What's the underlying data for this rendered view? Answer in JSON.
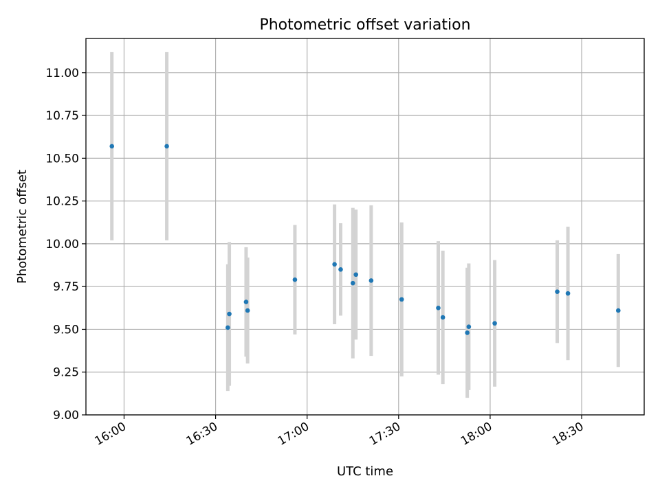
{
  "chart_data": {
    "type": "scatter",
    "title": "Photometric offset variation",
    "xlabel": "UTC time",
    "ylabel": "Photometric offset",
    "x_tick_labels": [
      "16:00",
      "16:30",
      "17:00",
      "17:30",
      "18:00",
      "18:30"
    ],
    "x_tick_minutes": [
      960,
      990,
      1020,
      1050,
      1080,
      1110
    ],
    "x_range_minutes": [
      947.5,
      1130.5
    ],
    "ylim": [
      9.0,
      11.2
    ],
    "y_ticks": [
      9.0,
      9.25,
      9.5,
      9.75,
      10.0,
      10.25,
      10.5,
      10.75,
      11.0
    ],
    "y_tick_labels": [
      "9.00",
      "9.25",
      "9.50",
      "9.75",
      "10.00",
      "10.25",
      "10.50",
      "10.75",
      "11.00"
    ],
    "grid": true,
    "colors": {
      "marker": "#1f77b4",
      "errorbar": "#d3d3d3",
      "grid": "#b0b0b0"
    },
    "points": [
      {
        "time": "15:56",
        "y": 10.57,
        "err": 0.55
      },
      {
        "time": "16:14",
        "y": 10.57,
        "err": 0.55
      },
      {
        "time": "16:34",
        "y": 9.51,
        "err": 0.37
      },
      {
        "time": "16:34.5",
        "y": 9.59,
        "err": 0.42
      },
      {
        "time": "16:40",
        "y": 9.66,
        "err": 0.32
      },
      {
        "time": "16:40.5",
        "y": 9.61,
        "err": 0.31
      },
      {
        "time": "16:56",
        "y": 9.79,
        "err": 0.32
      },
      {
        "time": "17:09",
        "y": 9.88,
        "err": 0.35
      },
      {
        "time": "17:11",
        "y": 9.85,
        "err": 0.27
      },
      {
        "time": "17:15",
        "y": 9.77,
        "err": 0.44
      },
      {
        "time": "17:16",
        "y": 9.82,
        "err": 0.38
      },
      {
        "time": "17:21",
        "y": 9.785,
        "err": 0.44
      },
      {
        "time": "17:31",
        "y": 9.675,
        "err": 0.45
      },
      {
        "time": "17:43",
        "y": 9.625,
        "err": 0.39
      },
      {
        "time": "17:44.5",
        "y": 9.57,
        "err": 0.39
      },
      {
        "time": "17:52.5",
        "y": 9.48,
        "err": 0.38
      },
      {
        "time": "17:53",
        "y": 9.515,
        "err": 0.37
      },
      {
        "time": "18:01.5",
        "y": 9.535,
        "err": 0.37
      },
      {
        "time": "18:22",
        "y": 9.72,
        "err": 0.3
      },
      {
        "time": "18:25.5",
        "y": 9.71,
        "err": 0.39
      },
      {
        "time": "18:42",
        "y": 9.61,
        "err": 0.33
      }
    ]
  }
}
